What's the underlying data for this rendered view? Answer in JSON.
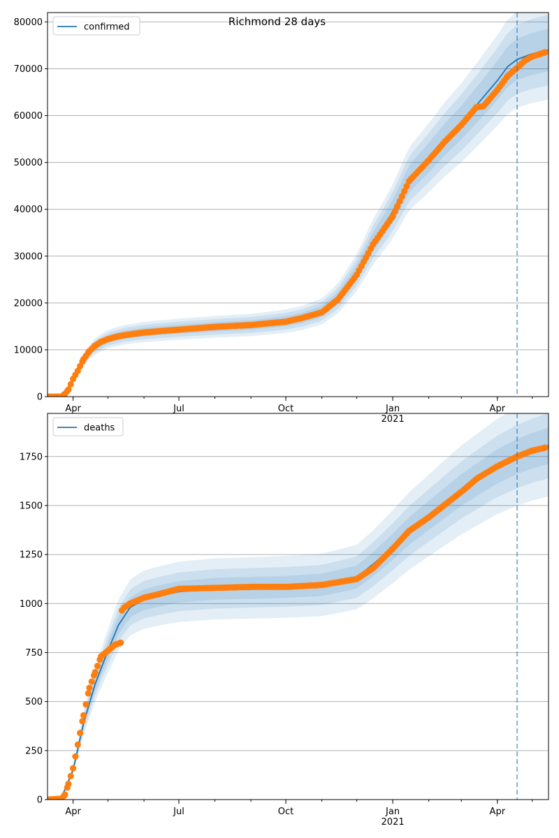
{
  "chart_data": [
    {
      "type": "line",
      "title": "Richmond 28 days",
      "xlabel": "",
      "ylabel": "",
      "x_range": [
        "2020-03-10",
        "2021-05-15"
      ],
      "ylim": [
        0,
        82000
      ],
      "yticks": [
        0,
        10000,
        20000,
        30000,
        40000,
        50000,
        60000,
        70000,
        80000
      ],
      "xticks": [
        {
          "date": "2020-04-01",
          "label": "Apr",
          "sub": ""
        },
        {
          "date": "2020-07-01",
          "label": "Jul",
          "sub": ""
        },
        {
          "date": "2020-10-01",
          "label": "Oct",
          "sub": ""
        },
        {
          "date": "2021-01-01",
          "label": "Jan",
          "sub": "2021"
        },
        {
          "date": "2021-04-01",
          "label": "Apr",
          "sub": ""
        }
      ],
      "grid": "horizontal",
      "legend_position": "top-left",
      "vline_date": "2021-04-18",
      "series": [
        {
          "name": "confirmed",
          "kind": "fit-with-bands",
          "color": "#1f77b4",
          "x": [
            "2020-03-10",
            "2020-03-25",
            "2020-04-01",
            "2020-04-10",
            "2020-04-20",
            "2020-05-01",
            "2020-05-15",
            "2020-06-01",
            "2020-06-15",
            "2020-07-01",
            "2020-08-01",
            "2020-09-01",
            "2020-10-01",
            "2020-10-15",
            "2020-11-01",
            "2020-11-15",
            "2020-12-01",
            "2020-12-15",
            "2021-01-01",
            "2021-01-15",
            "2021-02-01",
            "2021-02-15",
            "2021-03-01",
            "2021-03-15",
            "2021-04-01",
            "2021-04-10",
            "2021-04-18",
            "2021-05-01",
            "2021-05-15"
          ],
          "y": [
            0,
            500,
            3500,
            8000,
            10800,
            12300,
            13200,
            13800,
            14100,
            14400,
            14900,
            15300,
            16100,
            16800,
            18200,
            21000,
            26500,
            33000,
            39500,
            46500,
            51000,
            55000,
            58500,
            62500,
            67500,
            70500,
            72000,
            73200,
            74000
          ],
          "band_spreads": [
            0.06,
            0.1,
            0.14
          ]
        },
        {
          "name": "",
          "kind": "observed",
          "color": "#ff7f0e",
          "x": [
            "2020-03-10",
            "2020-03-22",
            "2020-03-25",
            "2020-03-28",
            "2020-04-01",
            "2020-04-05",
            "2020-04-10",
            "2020-04-15",
            "2020-04-20",
            "2020-04-25",
            "2020-05-01",
            "2020-05-10",
            "2020-05-20",
            "2020-06-01",
            "2020-06-15",
            "2020-07-01",
            "2020-08-01",
            "2020-09-01",
            "2020-10-01",
            "2020-10-15",
            "2020-11-01",
            "2020-11-15",
            "2020-12-01",
            "2020-12-15",
            "2021-01-01",
            "2021-01-15",
            "2021-02-01",
            "2021-02-15",
            "2021-03-01",
            "2021-03-14",
            "2021-03-20",
            "2021-04-01",
            "2021-04-10",
            "2021-04-18",
            "2021-04-25",
            "2021-05-01",
            "2021-05-07",
            "2021-05-12"
          ],
          "y": [
            0,
            0,
            600,
            1500,
            3800,
            5500,
            8000,
            9700,
            10900,
            11700,
            12300,
            12900,
            13300,
            13700,
            14000,
            14300,
            14900,
            15300,
            16000,
            16800,
            18000,
            20800,
            26000,
            32500,
            38500,
            46000,
            50500,
            54500,
            58000,
            61800,
            62000,
            65500,
            68500,
            70200,
            71800,
            72600,
            73100,
            73500
          ]
        }
      ]
    },
    {
      "type": "line",
      "title": "",
      "xlabel": "",
      "ylabel": "",
      "x_range": [
        "2020-03-10",
        "2021-05-15"
      ],
      "ylim": [
        0,
        1970
      ],
      "yticks": [
        0,
        250,
        500,
        750,
        1000,
        1250,
        1500,
        1750
      ],
      "xticks": [
        {
          "date": "2020-04-01",
          "label": "Apr",
          "sub": ""
        },
        {
          "date": "2020-07-01",
          "label": "Jul",
          "sub": ""
        },
        {
          "date": "2020-10-01",
          "label": "Oct",
          "sub": ""
        },
        {
          "date": "2021-01-01",
          "label": "Jan",
          "sub": "2021"
        },
        {
          "date": "2021-04-01",
          "label": "Apr",
          "sub": ""
        }
      ],
      "grid": "horizontal",
      "legend_position": "top-left",
      "vline_date": "2021-04-18",
      "series": [
        {
          "name": "deaths",
          "kind": "fit-with-bands",
          "color": "#1f77b4",
          "x": [
            "2020-03-10",
            "2020-03-22",
            "2020-04-01",
            "2020-04-10",
            "2020-04-20",
            "2020-05-01",
            "2020-05-10",
            "2020-05-20",
            "2020-06-01",
            "2020-06-15",
            "2020-07-01",
            "2020-08-01",
            "2020-09-01",
            "2020-10-01",
            "2020-11-01",
            "2020-12-01",
            "2020-12-15",
            "2021-01-01",
            "2021-01-15",
            "2021-02-01",
            "2021-03-01",
            "2021-04-01",
            "2021-04-18",
            "2021-05-01",
            "2021-05-15"
          ],
          "y": [
            0,
            10,
            150,
            390,
            590,
            760,
            890,
            980,
            1020,
            1040,
            1060,
            1075,
            1080,
            1085,
            1095,
            1135,
            1200,
            1290,
            1370,
            1450,
            1580,
            1700,
            1750,
            1780,
            1805
          ],
          "band_spreads": [
            0.05,
            0.09,
            0.14
          ]
        },
        {
          "name": "",
          "kind": "observed",
          "color": "#ff7f0e",
          "x": [
            "2020-03-10",
            "2020-03-22",
            "2020-03-25",
            "2020-03-28",
            "2020-04-01",
            "2020-04-05",
            "2020-04-10",
            "2020-04-15",
            "2020-04-20",
            "2020-04-25",
            "2020-05-01",
            "2020-05-07",
            "2020-05-12",
            "2020-05-13",
            "2020-05-15",
            "2020-05-20",
            "2020-06-01",
            "2020-06-15",
            "2020-07-01",
            "2020-08-01",
            "2020-09-01",
            "2020-10-01",
            "2020-11-01",
            "2020-12-01",
            "2020-12-15",
            "2021-01-01",
            "2021-01-15",
            "2021-02-01",
            "2021-03-01",
            "2021-03-15",
            "2021-04-01",
            "2021-04-18",
            "2021-05-01",
            "2021-05-12"
          ],
          "y": [
            0,
            5,
            25,
            80,
            160,
            280,
            430,
            570,
            650,
            730,
            760,
            790,
            800,
            965,
            980,
            1000,
            1030,
            1050,
            1075,
            1080,
            1085,
            1085,
            1095,
            1125,
            1180,
            1280,
            1370,
            1440,
            1570,
            1640,
            1700,
            1750,
            1780,
            1795
          ]
        }
      ]
    }
  ]
}
